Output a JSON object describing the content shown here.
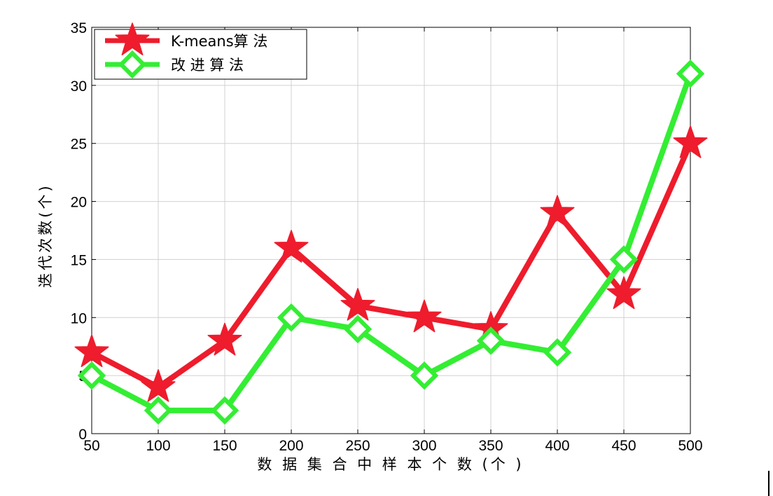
{
  "chart_data": {
    "type": "line",
    "title": "",
    "xlabel": "数 据 集 合 中 样 本 个 数 (个 )",
    "ylabel": "迭代次数(个)",
    "x": [
      50,
      100,
      150,
      200,
      250,
      300,
      350,
      400,
      450,
      500
    ],
    "xlim": [
      50,
      500
    ],
    "ylim": [
      0,
      35
    ],
    "xticks": [
      "50",
      "100",
      "150",
      "200",
      "250",
      "300",
      "350",
      "400",
      "450",
      "500"
    ],
    "yticks": [
      "0",
      "5",
      "10",
      "15",
      "20",
      "25",
      "30",
      "35"
    ],
    "grid": true,
    "legend_position": "top-left",
    "series": [
      {
        "name": "K-means算 法",
        "values": [
          7,
          4,
          8,
          16,
          11,
          10,
          9,
          19,
          12,
          25
        ],
        "color": "#ee1c2c",
        "marker": "star"
      },
      {
        "name": "改 进 算 法",
        "values": [
          5,
          2,
          2,
          10,
          9,
          5,
          8,
          7,
          15,
          31
        ],
        "color": "#33ee33",
        "marker": "diamond"
      }
    ]
  }
}
